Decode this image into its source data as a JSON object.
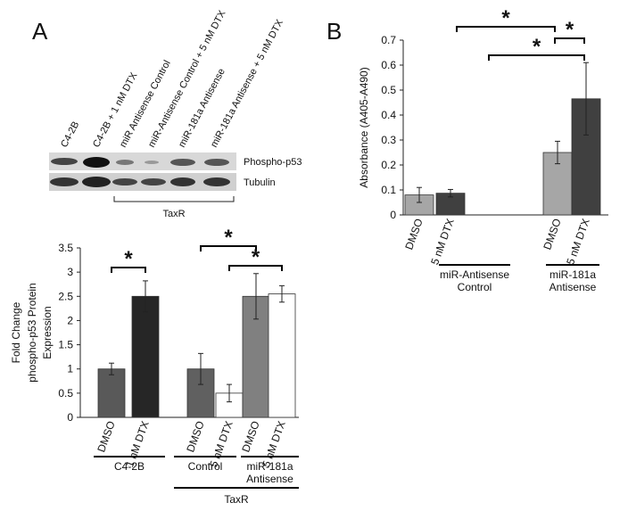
{
  "panels": [
    "A",
    "B"
  ],
  "blot": {
    "lanes": [
      "C4-2B",
      "C4-2B + 1 nM DTX",
      "miR Antisense Control",
      "miR-Antisense Control + 5 nM DTX",
      "miR-181a Antisense",
      "miR-181a Antisense + 5 nM DTX"
    ],
    "rows": [
      "Phospho-p53",
      "Tubulin"
    ],
    "bracket": "TaxR"
  },
  "chart_data": [
    {
      "type": "bar",
      "ylabel": [
        "Fold Change",
        "phospho-p53 Protein",
        "Expression"
      ],
      "categories": [
        "DMSO",
        "1 nM DTX",
        "DMSO",
        "5 nM DTX",
        "DMSO",
        "5 nM DTX"
      ],
      "values": [
        1,
        2.5,
        1,
        0.5,
        2.5,
        2.55
      ],
      "errors": [
        0.12,
        0.32,
        0.32,
        0.18,
        0.47,
        0.17
      ],
      "colors": [
        "#595959",
        "#262626",
        "#606060",
        "#ffffff",
        "#808080",
        "#ffffff"
      ],
      "ylim": [
        0,
        3.5
      ],
      "yticks": [
        0,
        0.5,
        1,
        1.5,
        2,
        2.5,
        3,
        3.5
      ],
      "groups": [
        [
          "C4-2B"
        ],
        [
          "Control"
        ],
        [
          "miR-181a",
          "Antisense"
        ]
      ],
      "supergroup": "TaxR",
      "annotations": [
        "*",
        "*",
        "*"
      ]
    },
    {
      "type": "bar",
      "ylabel": [
        "Absorbance  (A405-A490)"
      ],
      "categories": [
        "DMSO",
        "5 nM DTX",
        "DMSO",
        "5 nM DTX"
      ],
      "values": [
        0.08,
        0.087,
        0.25,
        0.465
      ],
      "errors": [
        0.03,
        0.015,
        0.045,
        0.145
      ],
      "colors": [
        "#a6a6a6",
        "#404040",
        "#a6a6a6",
        "#404040"
      ],
      "ylim": [
        0,
        0.7
      ],
      "yticks": [
        0,
        0.1,
        0.2,
        0.3,
        0.4,
        0.5,
        0.6,
        0.7
      ],
      "groups": [
        [
          "miR-Antisense",
          "Control"
        ],
        [
          "miR-181a",
          "Antisense"
        ]
      ],
      "annotations": [
        "*",
        "*",
        "*"
      ]
    }
  ]
}
